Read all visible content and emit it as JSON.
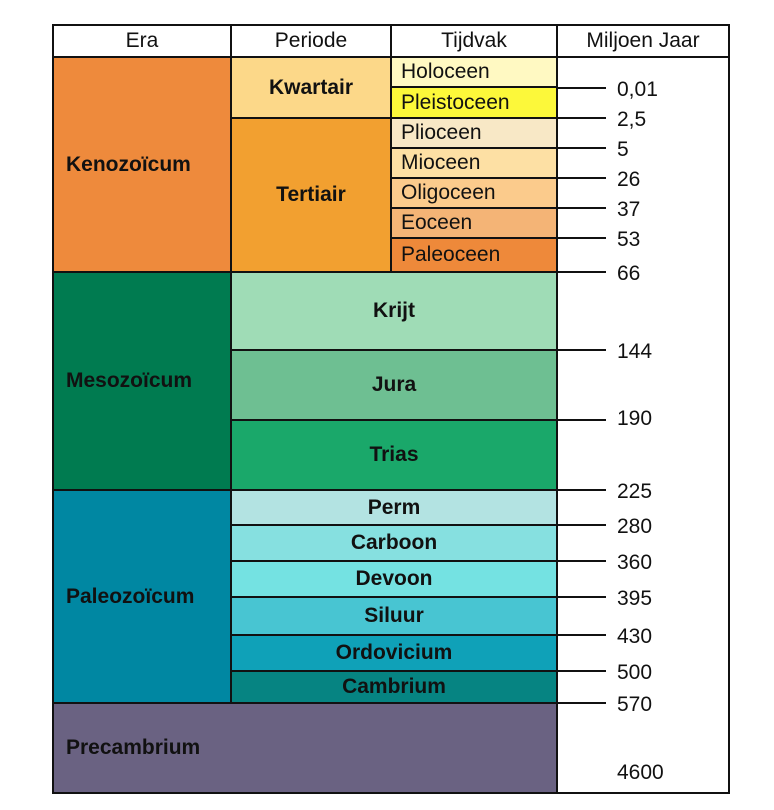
{
  "headers": {
    "era": "Era",
    "period": "Periode",
    "epoch": "Tijdvak",
    "age": "Miljoen Jaar"
  },
  "eras": [
    {
      "label": "Kenozoïcum",
      "color": "#ee8a3c"
    },
    {
      "label": "Mesozoïcum",
      "color": "#007b50"
    },
    {
      "label": "Paleozoïcum",
      "color": "#0087a2"
    },
    {
      "label": "Precambrium",
      "color": "#6a6282"
    }
  ],
  "periods": [
    {
      "label": "Kwartair",
      "color": "#fcd889"
    },
    {
      "label": "Tertiair",
      "color": "#f2a030"
    },
    {
      "label": "Krijt",
      "color": "#9fdcb6"
    },
    {
      "label": "Jura",
      "color": "#6ebf92"
    },
    {
      "label": "Trias",
      "color": "#1aa86a"
    },
    {
      "label": "Perm",
      "color": "#b3e3e2"
    },
    {
      "label": "Carboon",
      "color": "#86e0e0"
    },
    {
      "label": "Devoon",
      "color": "#74e2e2"
    },
    {
      "label": "Siluur",
      "color": "#48c5d2"
    },
    {
      "label": "Ordovicium",
      "color": "#0fa1b8"
    },
    {
      "label": "Cambrium",
      "color": "#068482"
    }
  ],
  "epochs": [
    {
      "label": "Holoceen",
      "color": "#fff9c2"
    },
    {
      "label": "Pleistoceen",
      "color": "#fcf83a"
    },
    {
      "label": "Plioceen",
      "color": "#f8e8c6"
    },
    {
      "label": "Mioceen",
      "color": "#fde0a4"
    },
    {
      "label": "Oligoceen",
      "color": "#fbcb8c"
    },
    {
      "label": "Eoceen",
      "color": "#f4b476"
    },
    {
      "label": "Paleoceen",
      "color": "#ee893a"
    }
  ],
  "ages": [
    "0,01",
    "2,5",
    "5",
    "26",
    "37",
    "53",
    "66",
    "144",
    "190",
    "225",
    "280",
    "360",
    "395",
    "430",
    "500",
    "570",
    "4600"
  ]
}
